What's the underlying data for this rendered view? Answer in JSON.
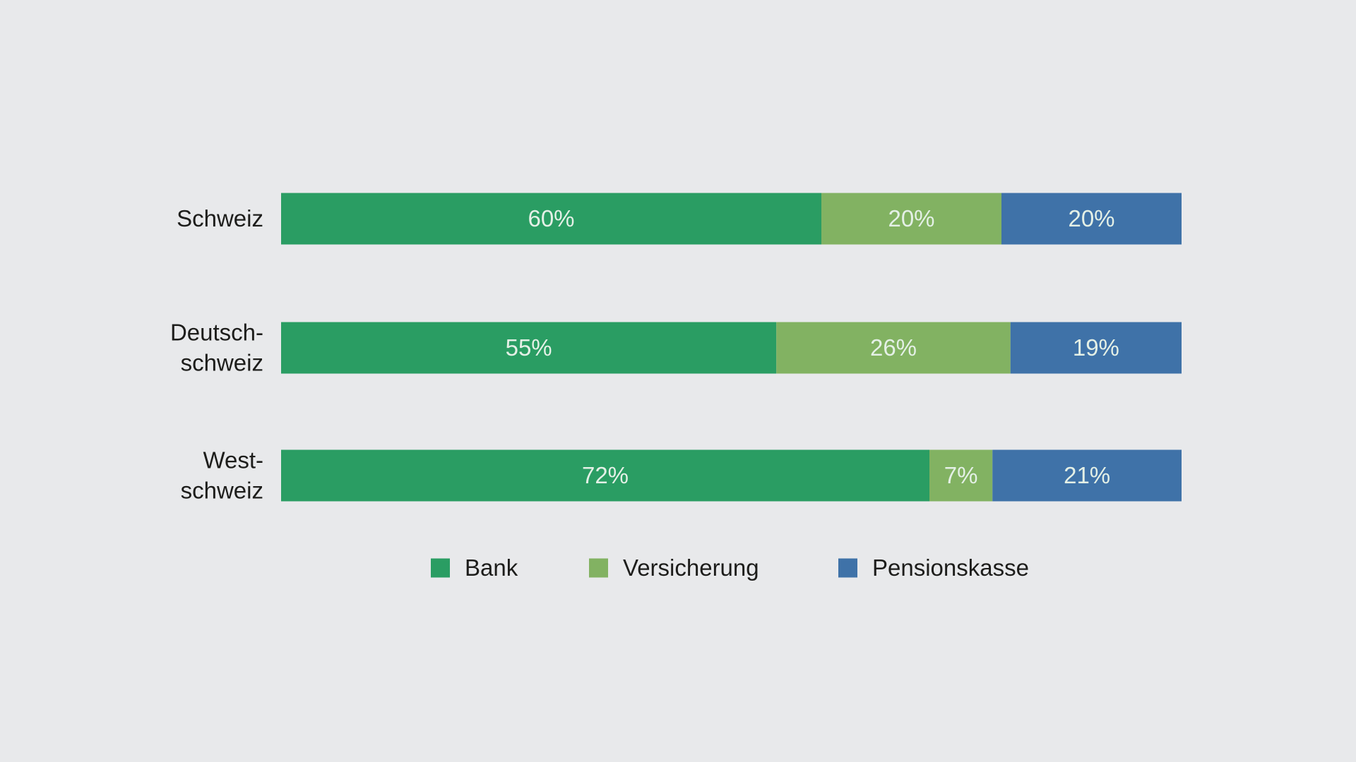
{
  "chart_data": {
    "type": "bar",
    "orientation": "horizontal",
    "stacked": true,
    "categories": [
      [
        "Schweiz"
      ],
      [
        "Deutsch-",
        "schweiz"
      ],
      [
        "West-",
        "schweiz"
      ]
    ],
    "series": [
      {
        "name": "Bank",
        "values": [
          60,
          55,
          72
        ],
        "labels": [
          "60%",
          "55%",
          "72%"
        ],
        "color": "#2a9d63"
      },
      {
        "name": "Versicherung",
        "values": [
          20,
          26,
          7
        ],
        "labels": [
          "20%",
          "26%",
          "7%"
        ],
        "color": "#82b262"
      },
      {
        "name": "Pensionskasse",
        "values": [
          20,
          19,
          21
        ],
        "labels": [
          "20%",
          "19%",
          "21%"
        ],
        "color": "#3f72a8"
      }
    ],
    "xlim": [
      0,
      100
    ],
    "grid": false,
    "legend_position": "bottom",
    "background": "#e8e9eb",
    "category_label_color": "#1d1d1b",
    "value_label_color": "#e4f0e6"
  }
}
